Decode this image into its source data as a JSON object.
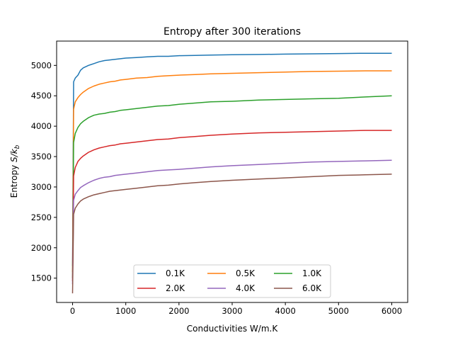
{
  "chart_data": {
    "type": "line",
    "title": "Entropy after 300 iterations",
    "xlabel": "Conductivities W/m.K",
    "ylabel": "Entropy S/k_b",
    "ylabel_prefix": "Entropy ",
    "ylabel_math": "S/k",
    "ylabel_sub": "b",
    "xlim": [
      -300,
      6300
    ],
    "ylim": [
      1100,
      5400
    ],
    "xticks": [
      0,
      1000,
      2000,
      3000,
      4000,
      5000,
      6000
    ],
    "yticks": [
      1500,
      2000,
      2500,
      3000,
      3500,
      4000,
      4500,
      5000
    ],
    "grid": false,
    "legend": {
      "location": "lower center",
      "columns": 3
    },
    "x": [
      0,
      20,
      50,
      100,
      150,
      200,
      300,
      400,
      500,
      600,
      700,
      800,
      900,
      1000,
      1200,
      1400,
      1600,
      1800,
      2000,
      2300,
      2600,
      3000,
      3500,
      4000,
      4500,
      5000,
      5500,
      6000
    ],
    "series": [
      {
        "name": "0.1K",
        "color": "#1f77b4",
        "values": [
          1700,
          4730,
          4790,
          4840,
          4920,
          4960,
          5000,
          5030,
          5060,
          5080,
          5090,
          5100,
          5110,
          5120,
          5130,
          5140,
          5150,
          5150,
          5160,
          5165,
          5170,
          5175,
          5180,
          5185,
          5190,
          5195,
          5200,
          5200
        ]
      },
      {
        "name": "0.5K",
        "color": "#ff7f0e",
        "values": [
          1600,
          4280,
          4400,
          4470,
          4520,
          4560,
          4620,
          4660,
          4690,
          4710,
          4730,
          4740,
          4760,
          4770,
          4790,
          4800,
          4820,
          4830,
          4840,
          4850,
          4860,
          4870,
          4880,
          4890,
          4900,
          4905,
          4910,
          4910
        ]
      },
      {
        "name": "1.0K",
        "color": "#2ca02c",
        "values": [
          1500,
          3730,
          3880,
          3980,
          4040,
          4080,
          4140,
          4180,
          4200,
          4210,
          4230,
          4240,
          4260,
          4270,
          4290,
          4310,
          4330,
          4340,
          4360,
          4380,
          4400,
          4410,
          4430,
          4440,
          4450,
          4460,
          4480,
          4500
        ]
      },
      {
        "name": "2.0K",
        "color": "#d62728",
        "values": [
          1450,
          3180,
          3320,
          3420,
          3470,
          3510,
          3570,
          3610,
          3640,
          3660,
          3680,
          3690,
          3710,
          3720,
          3740,
          3760,
          3780,
          3790,
          3810,
          3830,
          3850,
          3870,
          3890,
          3900,
          3910,
          3920,
          3930,
          3930
        ]
      },
      {
        "name": "4.0K",
        "color": "#9467bd",
        "values": [
          1400,
          2780,
          2880,
          2940,
          2990,
          3020,
          3070,
          3110,
          3140,
          3160,
          3170,
          3190,
          3200,
          3210,
          3230,
          3250,
          3270,
          3280,
          3290,
          3310,
          3330,
          3350,
          3370,
          3390,
          3410,
          3420,
          3430,
          3440
        ]
      },
      {
        "name": "6.0K",
        "color": "#8c564b",
        "values": [
          1250,
          2550,
          2650,
          2720,
          2770,
          2800,
          2840,
          2870,
          2890,
          2910,
          2930,
          2940,
          2950,
          2960,
          2980,
          3000,
          3020,
          3030,
          3050,
          3070,
          3090,
          3110,
          3130,
          3150,
          3170,
          3190,
          3200,
          3210
        ]
      }
    ]
  }
}
